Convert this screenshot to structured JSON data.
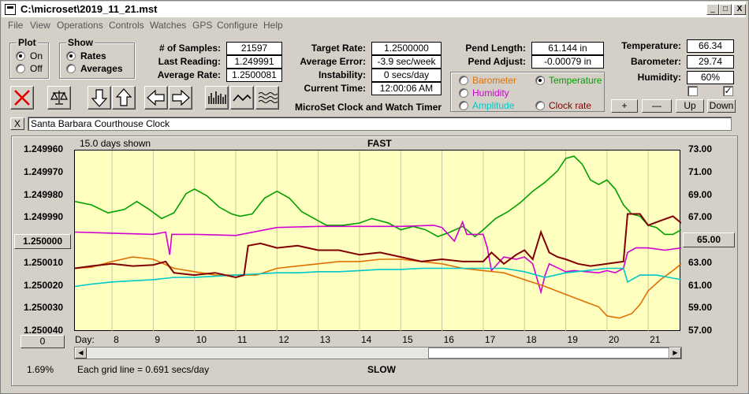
{
  "title_bar": {
    "title": "C:\\microset\\2019_11_21.mst",
    "minimize": "_",
    "maximize": "□",
    "close": "X"
  },
  "menu": [
    "File",
    "View",
    "Operations",
    "Controls",
    "Watches",
    "GPS",
    "Configure",
    "Help"
  ],
  "plot_group": {
    "title": "Plot",
    "options": [
      "On",
      "Off"
    ],
    "selected": "On"
  },
  "show_group": {
    "title": "Show",
    "options": [
      "Rates",
      "Averages"
    ],
    "selected": "Rates"
  },
  "stats": {
    "samples_label": "# of Samples:",
    "samples": "21597",
    "last_reading_label": "Last Reading:",
    "last_reading": "1.249991",
    "avg_rate_label": "Average Rate:",
    "avg_rate": "1.2500081"
  },
  "target": {
    "target_rate_label": "Target Rate:",
    "target_rate": "1.2500000",
    "avg_error_label": "Average Error:",
    "avg_error": "-3.9 sec/week",
    "instability_label": "Instability:",
    "instability": "0 secs/day",
    "current_time_label": "Current Time:",
    "current_time": "12:00:06 AM"
  },
  "pend": {
    "length_label": "Pend Length:",
    "length": "61.144 in",
    "adjust_label": "Pend Adjust:",
    "adjust": "-0.00079 in"
  },
  "environment": {
    "temperature_label": "Temperature:",
    "temperature": "66.34",
    "barometer_label": "Barometer:",
    "barometer": "29.74",
    "humidity_label": "Humidity:",
    "humidity": "60%"
  },
  "app_caption": "MicroSet Clock and Watch Timer",
  "right_axis_selector": {
    "options": [
      {
        "label": "Barometer",
        "color": "#e07000",
        "selected": false
      },
      {
        "label": "Temperature",
        "color": "#00a000",
        "selected": true
      },
      {
        "label": "Humidity",
        "color": "#d000d0",
        "selected": false
      },
      {
        "label": "Amplitude",
        "color": "#00c8c8",
        "selected": false
      },
      {
        "label": "Clock rate",
        "color": "#800000",
        "selected": false
      }
    ]
  },
  "scale_buttons": {
    "plus": "+",
    "minus": "—",
    "up": "Up",
    "down": "Down"
  },
  "checkboxes": [
    false,
    true
  ],
  "note": "Santa Barbara Courthouse Clock",
  "note_clear": "X",
  "graph": {
    "days_shown": "15.0 days shown",
    "top_label": "FAST",
    "bottom_label": "SLOW",
    "grid_note": "Each grid line = 0.691 secs/day",
    "percent": "1.69%",
    "left_center_button": "1.250000",
    "left_bottom_button": "0",
    "right_center_button": "65.00",
    "day_label": "Day:"
  },
  "chart_data": {
    "type": "line",
    "x_label": "Day",
    "x_ticks": [
      8,
      9,
      10,
      11,
      12,
      13,
      14,
      15,
      16,
      17,
      18,
      19,
      20,
      21
    ],
    "xlim": [
      7.1,
      21.8
    ],
    "left_axis": {
      "ticks": [
        "1.249960",
        "1.249970",
        "1.249980",
        "1.249990",
        "1.250000",
        "1.250010",
        "1.250020",
        "1.250030",
        "1.250040"
      ],
      "ylim": [
        1.24996,
        1.25004
      ],
      "inverted": true
    },
    "right_axis": {
      "ticks": [
        "73.00",
        "71.00",
        "69.00",
        "67.00",
        "65.00",
        "63.00",
        "61.00",
        "59.00",
        "57.00"
      ],
      "ylim": [
        57,
        73
      ]
    },
    "series": [
      {
        "name": "Temperature",
        "color": "#00a000",
        "axis": "right",
        "points": [
          [
            7.1,
            68.5
          ],
          [
            7.5,
            68.2
          ],
          [
            7.9,
            67.5
          ],
          [
            8.3,
            67.8
          ],
          [
            8.6,
            68.5
          ],
          [
            8.9,
            67.8
          ],
          [
            9.2,
            67.0
          ],
          [
            9.5,
            67.5
          ],
          [
            9.8,
            69.2
          ],
          [
            10.0,
            69.6
          ],
          [
            10.3,
            69.0
          ],
          [
            10.6,
            68.0
          ],
          [
            10.9,
            67.4
          ],
          [
            11.1,
            67.2
          ],
          [
            11.4,
            67.4
          ],
          [
            11.7,
            68.8
          ],
          [
            12.0,
            69.4
          ],
          [
            12.3,
            68.8
          ],
          [
            12.6,
            67.6
          ],
          [
            12.9,
            67.0
          ],
          [
            13.2,
            66.4
          ],
          [
            13.6,
            66.4
          ],
          [
            14.0,
            66.6
          ],
          [
            14.3,
            67.0
          ],
          [
            14.7,
            66.6
          ],
          [
            15.0,
            66.0
          ],
          [
            15.3,
            66.3
          ],
          [
            15.6,
            66.0
          ],
          [
            15.9,
            65.4
          ],
          [
            16.2,
            65.8
          ],
          [
            16.5,
            66.3
          ],
          [
            16.8,
            65.4
          ],
          [
            17.0,
            66.0
          ],
          [
            17.3,
            67.0
          ],
          [
            17.6,
            67.6
          ],
          [
            17.9,
            68.4
          ],
          [
            18.2,
            69.4
          ],
          [
            18.5,
            70.2
          ],
          [
            18.8,
            71.2
          ],
          [
            19.0,
            72.3
          ],
          [
            19.2,
            72.5
          ],
          [
            19.4,
            71.8
          ],
          [
            19.6,
            70.4
          ],
          [
            19.8,
            70.0
          ],
          [
            20.0,
            70.4
          ],
          [
            20.2,
            69.6
          ],
          [
            20.4,
            68.2
          ],
          [
            20.6,
            67.4
          ],
          [
            20.8,
            67.2
          ],
          [
            21.0,
            66.4
          ],
          [
            21.2,
            66.2
          ],
          [
            21.4,
            65.6
          ],
          [
            21.6,
            65.6
          ],
          [
            21.8,
            66.0
          ]
        ]
      },
      {
        "name": "Humidity",
        "color": "#d000d0",
        "axis": "right",
        "points": [
          [
            7.1,
            65.8
          ],
          [
            8.0,
            65.7
          ],
          [
            9.0,
            65.6
          ],
          [
            9.3,
            65.8
          ],
          [
            9.4,
            63.8
          ],
          [
            9.45,
            65.6
          ],
          [
            10.0,
            65.6
          ],
          [
            11.0,
            65.5
          ],
          [
            12.0,
            66.2
          ],
          [
            13.0,
            66.3
          ],
          [
            14.0,
            66.3
          ],
          [
            15.0,
            66.3
          ],
          [
            15.8,
            66.4
          ],
          [
            16.0,
            66.2
          ],
          [
            16.3,
            65.0
          ],
          [
            16.5,
            66.7
          ],
          [
            16.6,
            65.6
          ],
          [
            17.0,
            65.6
          ],
          [
            17.1,
            64.4
          ],
          [
            17.2,
            62.4
          ],
          [
            17.3,
            62.8
          ],
          [
            17.5,
            63.6
          ],
          [
            17.8,
            63.4
          ],
          [
            18.0,
            63.6
          ],
          [
            18.2,
            63.0
          ],
          [
            18.4,
            60.5
          ],
          [
            18.5,
            62.0
          ],
          [
            18.6,
            63.0
          ],
          [
            19.0,
            62.3
          ],
          [
            19.2,
            62.4
          ],
          [
            19.5,
            62.3
          ],
          [
            19.8,
            62.2
          ],
          [
            20.0,
            62.4
          ],
          [
            20.2,
            62.2
          ],
          [
            20.4,
            62.6
          ],
          [
            20.5,
            64.0
          ],
          [
            20.7,
            64.4
          ],
          [
            21.0,
            64.4
          ],
          [
            21.4,
            64.2
          ],
          [
            21.8,
            64.4
          ]
        ]
      },
      {
        "name": "Barometer",
        "color": "#e07000",
        "axis": "right",
        "points": [
          [
            7.1,
            62.6
          ],
          [
            7.5,
            62.7
          ],
          [
            8.0,
            63.2
          ],
          [
            8.5,
            63.6
          ],
          [
            9.0,
            63.4
          ],
          [
            9.5,
            62.6
          ],
          [
            10.0,
            62.3
          ],
          [
            10.5,
            62.0
          ],
          [
            11.0,
            62.0
          ],
          [
            11.5,
            62.0
          ],
          [
            12.0,
            62.6
          ],
          [
            12.5,
            62.8
          ],
          [
            13.0,
            63.0
          ],
          [
            13.5,
            63.2
          ],
          [
            14.0,
            63.2
          ],
          [
            14.5,
            63.4
          ],
          [
            15.0,
            63.4
          ],
          [
            15.5,
            63.2
          ],
          [
            16.0,
            63.0
          ],
          [
            16.5,
            62.6
          ],
          [
            17.0,
            62.4
          ],
          [
            17.5,
            62.2
          ],
          [
            18.0,
            61.6
          ],
          [
            18.5,
            61.0
          ],
          [
            19.0,
            60.3
          ],
          [
            19.5,
            59.6
          ],
          [
            19.8,
            59.2
          ],
          [
            20.0,
            58.4
          ],
          [
            20.3,
            58.2
          ],
          [
            20.6,
            58.6
          ],
          [
            20.8,
            59.4
          ],
          [
            21.0,
            60.6
          ],
          [
            21.3,
            61.6
          ],
          [
            21.6,
            62.4
          ],
          [
            21.8,
            63.0
          ]
        ]
      },
      {
        "name": "Amplitude",
        "color": "#00c8c8",
        "axis": "right",
        "points": [
          [
            7.1,
            61.0
          ],
          [
            7.5,
            61.2
          ],
          [
            8.0,
            61.4
          ],
          [
            8.5,
            61.5
          ],
          [
            9.0,
            61.6
          ],
          [
            9.5,
            61.8
          ],
          [
            10.0,
            61.8
          ],
          [
            10.5,
            61.9
          ],
          [
            11.0,
            62.0
          ],
          [
            11.5,
            62.1
          ],
          [
            12.0,
            62.2
          ],
          [
            12.5,
            62.2
          ],
          [
            13.0,
            62.3
          ],
          [
            13.5,
            62.3
          ],
          [
            14.0,
            62.4
          ],
          [
            14.5,
            62.5
          ],
          [
            15.0,
            62.5
          ],
          [
            15.5,
            62.6
          ],
          [
            16.0,
            62.6
          ],
          [
            16.5,
            62.6
          ],
          [
            17.0,
            62.6
          ],
          [
            17.5,
            62.6
          ],
          [
            18.0,
            62.3
          ],
          [
            18.5,
            61.8
          ],
          [
            19.0,
            62.2
          ],
          [
            19.5,
            62.4
          ],
          [
            20.0,
            62.6
          ],
          [
            20.4,
            62.6
          ],
          [
            20.5,
            61.4
          ],
          [
            20.8,
            62.0
          ],
          [
            21.2,
            62.0
          ],
          [
            21.5,
            61.8
          ],
          [
            21.8,
            61.6
          ]
        ]
      },
      {
        "name": "Clock rate",
        "color": "#800000",
        "axis": "right",
        "points": [
          [
            7.1,
            62.6
          ],
          [
            7.5,
            62.8
          ],
          [
            8.0,
            63.0
          ],
          [
            8.5,
            62.8
          ],
          [
            9.0,
            62.9
          ],
          [
            9.3,
            63.2
          ],
          [
            9.5,
            62.2
          ],
          [
            10.0,
            62.0
          ],
          [
            10.5,
            62.2
          ],
          [
            11.0,
            61.8
          ],
          [
            11.2,
            62.0
          ],
          [
            11.3,
            64.6
          ],
          [
            11.6,
            64.8
          ],
          [
            12.0,
            64.4
          ],
          [
            12.5,
            64.6
          ],
          [
            13.0,
            64.2
          ],
          [
            13.5,
            64.2
          ],
          [
            14.0,
            63.8
          ],
          [
            14.5,
            64.0
          ],
          [
            15.0,
            63.6
          ],
          [
            15.5,
            63.2
          ],
          [
            16.0,
            63.4
          ],
          [
            16.5,
            63.2
          ],
          [
            17.0,
            63.2
          ],
          [
            17.2,
            64.0
          ],
          [
            17.5,
            63.0
          ],
          [
            17.8,
            63.8
          ],
          [
            18.0,
            64.2
          ],
          [
            18.2,
            63.4
          ],
          [
            18.4,
            65.8
          ],
          [
            18.6,
            64.0
          ],
          [
            18.8,
            63.6
          ],
          [
            19.0,
            63.4
          ],
          [
            19.3,
            63.0
          ],
          [
            19.6,
            62.8
          ],
          [
            20.0,
            63.0
          ],
          [
            20.4,
            63.2
          ],
          [
            20.5,
            67.4
          ],
          [
            20.8,
            67.4
          ],
          [
            21.0,
            66.4
          ],
          [
            21.3,
            66.8
          ],
          [
            21.6,
            67.2
          ],
          [
            21.8,
            66.6
          ]
        ]
      }
    ]
  }
}
